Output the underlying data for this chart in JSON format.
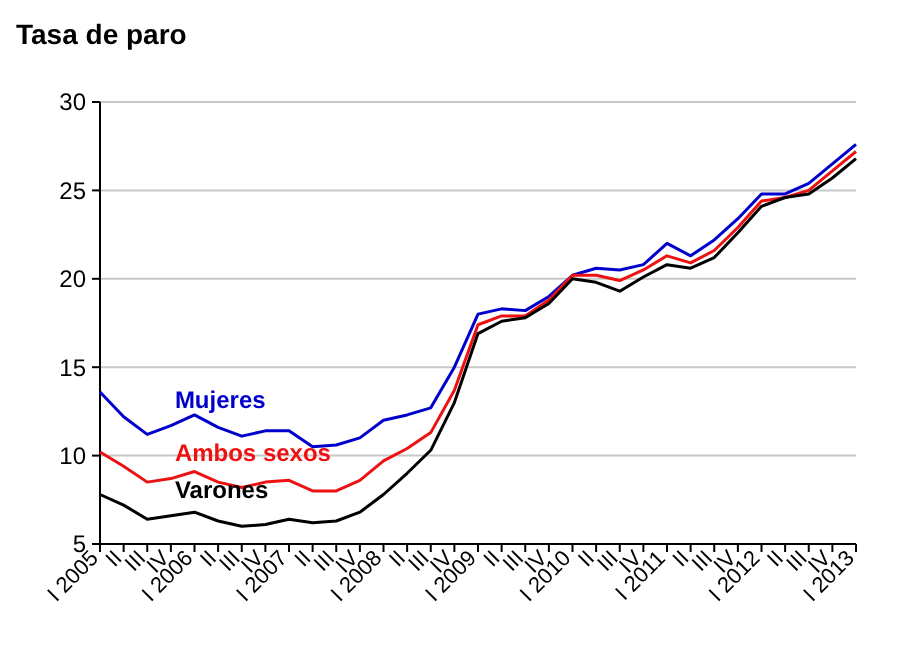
{
  "chart_data": {
    "type": "line",
    "title": "Tasa de paro",
    "categories": [
      "I 2005",
      "II",
      "III",
      "IV",
      "I 2006",
      "II",
      "III",
      "IV",
      "I 2007",
      "II",
      "III",
      "IV",
      "I 2008",
      "II",
      "III",
      "IV",
      "I 2009",
      "II",
      "III",
      "IV",
      "I 2010",
      "II",
      "III",
      "IV",
      "I 2011",
      "II",
      "III",
      "IV",
      "I 2012",
      "II",
      "III",
      "IV",
      "I 2013"
    ],
    "series": [
      {
        "name": "Mujeres",
        "color": "#0000cc",
        "values": [
          13.6,
          12.2,
          11.2,
          11.7,
          12.3,
          11.6,
          11.1,
          11.4,
          11.4,
          10.5,
          10.6,
          11.0,
          12.0,
          12.3,
          12.7,
          15.0,
          18.0,
          18.3,
          18.2,
          19.0,
          20.2,
          20.6,
          20.5,
          20.8,
          22.0,
          21.3,
          22.2,
          23.4,
          24.8,
          24.8,
          25.4,
          26.5,
          27.6
        ]
      },
      {
        "name": "Ambos sexos",
        "color": "#ee1111",
        "values": [
          10.2,
          9.4,
          8.5,
          8.7,
          9.1,
          8.5,
          8.2,
          8.5,
          8.6,
          8.0,
          8.0,
          8.6,
          9.7,
          10.4,
          11.3,
          13.7,
          17.4,
          17.9,
          17.9,
          18.8,
          20.2,
          20.2,
          19.9,
          20.5,
          21.3,
          20.9,
          21.6,
          22.9,
          24.4,
          24.6,
          25.0,
          26.1,
          27.2
        ]
      },
      {
        "name": "Varones",
        "color": "#000000",
        "values": [
          7.8,
          7.2,
          6.4,
          6.6,
          6.8,
          6.3,
          6.0,
          6.1,
          6.4,
          6.2,
          6.3,
          6.8,
          7.8,
          9.0,
          10.3,
          13.0,
          16.9,
          17.6,
          17.8,
          18.6,
          20.0,
          19.8,
          19.3,
          20.1,
          20.8,
          20.6,
          21.2,
          22.6,
          24.1,
          24.6,
          24.8,
          25.7,
          26.8
        ]
      }
    ],
    "ylim": [
      5,
      30
    ],
    "yticks": [
      5,
      10,
      15,
      20,
      25,
      30
    ],
    "grid": "y",
    "legend": false,
    "marker": "none",
    "line_style": "solid"
  }
}
